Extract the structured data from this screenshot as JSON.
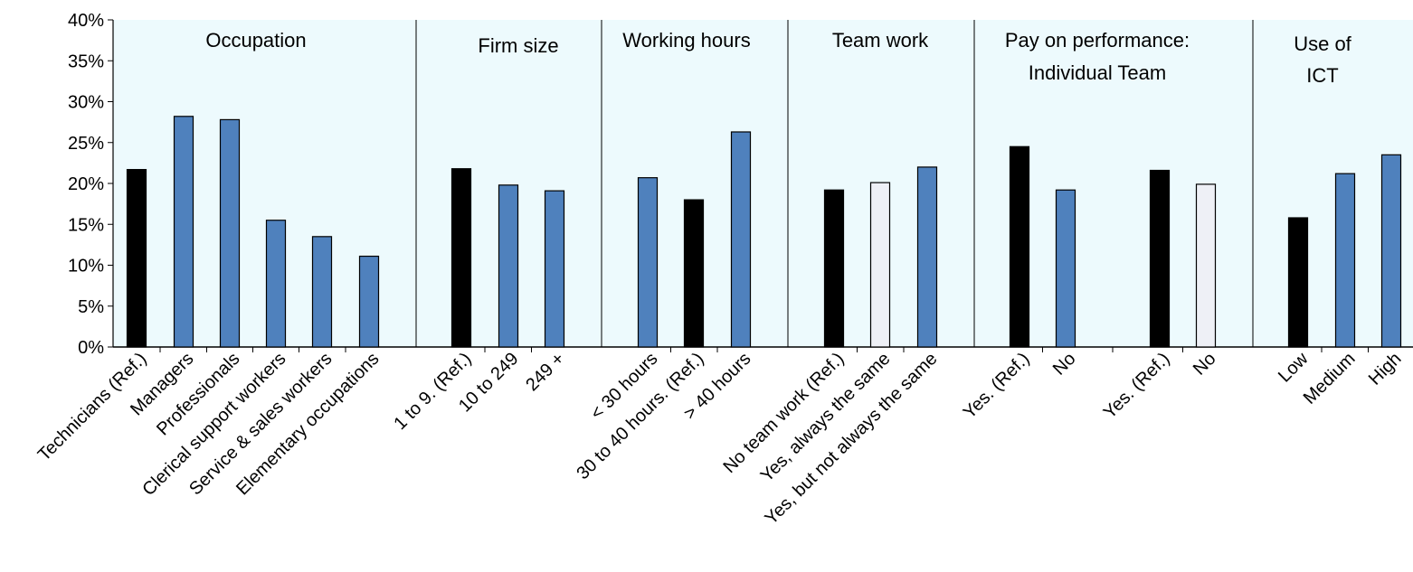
{
  "chart_data": {
    "type": "bar",
    "title": "",
    "xlabel": "",
    "ylabel": "",
    "ylim": [
      0,
      40
    ],
    "yticks": [
      "0%",
      "5%",
      "10%",
      "15%",
      "20%",
      "25%",
      "30%",
      "35%",
      "40%"
    ],
    "grid": false,
    "legend": "none",
    "colors": {
      "reference": "#000000",
      "category": "#4f81bd",
      "light": "#eef0f6",
      "panel_bg": "#edfafd"
    },
    "groups": [
      {
        "title": [
          "Occupation"
        ],
        "bars": [
          {
            "label": "Technicians (Ref.)",
            "value": 21.7,
            "style": "reference"
          },
          {
            "label": "Managers",
            "value": 28.2,
            "style": "category"
          },
          {
            "label": "Professionals",
            "value": 27.8,
            "style": "category"
          },
          {
            "label": "Clerical support workers",
            "value": 15.5,
            "style": "category"
          },
          {
            "label": "Service & sales workers",
            "value": 13.5,
            "style": "category"
          },
          {
            "label": "Elementary occupations",
            "value": 11.1,
            "style": "category"
          }
        ]
      },
      {
        "title": [
          "Firm size"
        ],
        "bars": [
          {
            "label": "1 to 9. (Ref.)",
            "value": 21.8,
            "style": "reference"
          },
          {
            "label": "10 to 249",
            "value": 19.8,
            "style": "category"
          },
          {
            "label": "249 +",
            "value": 19.1,
            "style": "category"
          }
        ]
      },
      {
        "title": [
          "Working hours"
        ],
        "bars": [
          {
            "label": "< 30 hours",
            "value": 20.7,
            "style": "category"
          },
          {
            "label": "30 to 40 hours. (Ref.)",
            "value": 18.0,
            "style": "reference"
          },
          {
            "label": "> 40 hours",
            "value": 26.3,
            "style": "category"
          }
        ]
      },
      {
        "title": [
          "Team work"
        ],
        "bars": [
          {
            "label": "No team work (Ref.)",
            "value": 19.2,
            "style": "reference"
          },
          {
            "label": "Yes, always the same",
            "value": 20.1,
            "style": "light"
          },
          {
            "label": "Yes, but not always the same",
            "value": 22.0,
            "style": "category"
          }
        ]
      },
      {
        "title": [
          "Pay on performance:",
          "Individual     Team"
        ],
        "bars": [
          {
            "label": "Yes. (Ref.)",
            "value": 24.5,
            "style": "reference"
          },
          {
            "label": "No",
            "value": 19.2,
            "style": "category"
          },
          {
            "label": "Yes. (Ref.)",
            "value": 21.6,
            "style": "reference"
          },
          {
            "label": "No",
            "value": 19.9,
            "style": "light"
          }
        ]
      },
      {
        "title": [
          "Use of",
          "ICT"
        ],
        "bars": [
          {
            "label": "Low",
            "value": 15.8,
            "style": "reference"
          },
          {
            "label": "Medium",
            "value": 21.2,
            "style": "category"
          },
          {
            "label": "High",
            "value": 23.5,
            "style": "category"
          }
        ]
      }
    ]
  }
}
